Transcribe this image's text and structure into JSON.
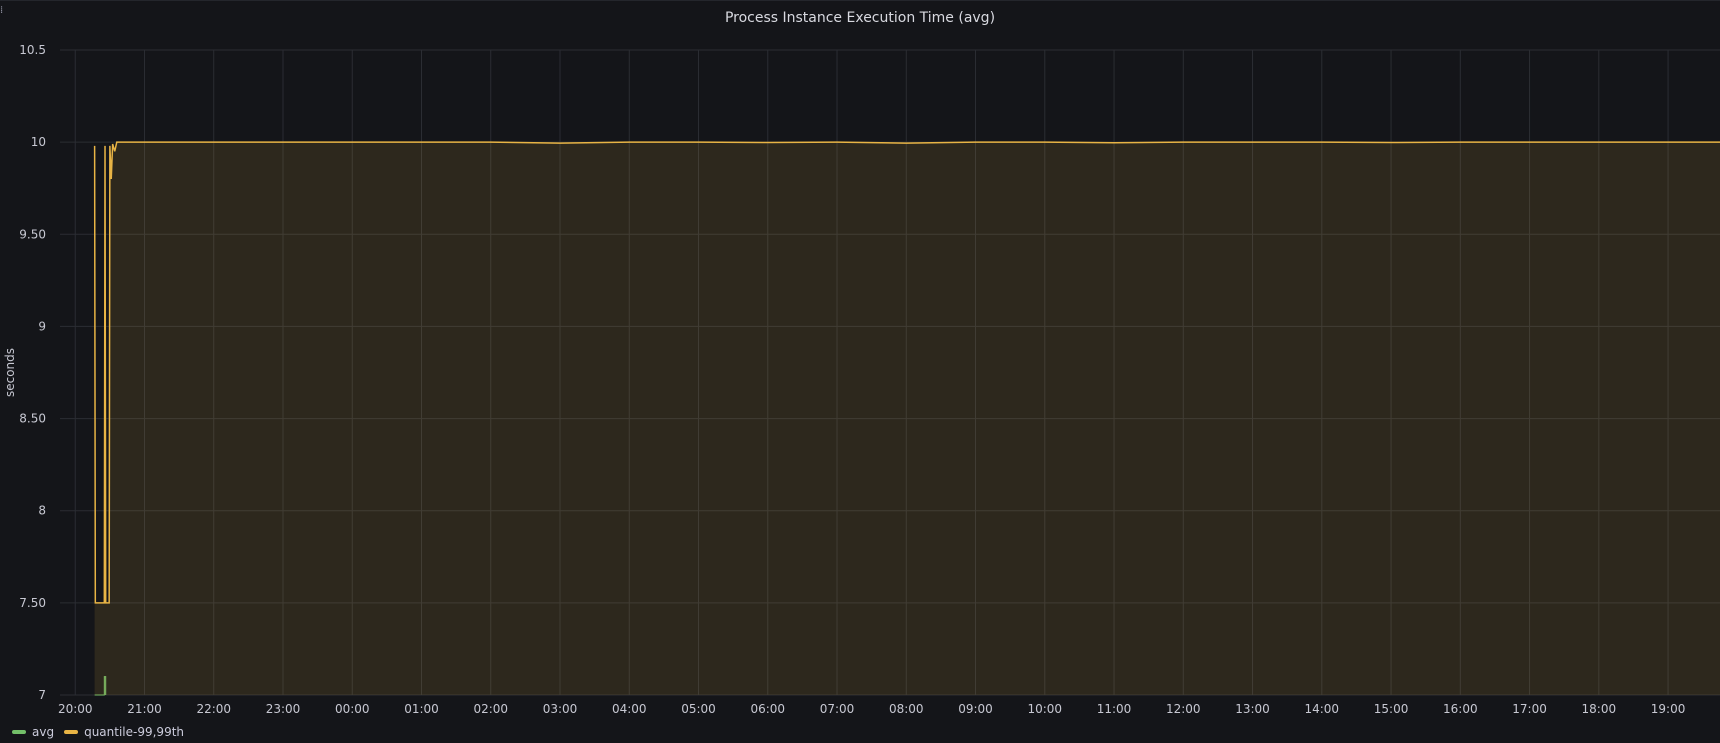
{
  "panel": {
    "title": "Process Instance Execution Time (avg)"
  },
  "chart_data": {
    "type": "area",
    "title": "Process Instance Execution Time (avg)",
    "ylabel": "seconds",
    "xlabel": "",
    "ylim": [
      7,
      10.5
    ],
    "y_ticks": [
      {
        "value": 10.5,
        "label": "10.5"
      },
      {
        "value": 10,
        "label": "10"
      },
      {
        "value": 9.5,
        "label": "9.50"
      },
      {
        "value": 9,
        "label": "9"
      },
      {
        "value": 8.5,
        "label": "8.50"
      },
      {
        "value": 8,
        "label": "8"
      },
      {
        "value": 7.5,
        "label": "7.50"
      },
      {
        "value": 7,
        "label": "7"
      }
    ],
    "x_ticks": [
      "20:00",
      "21:00",
      "22:00",
      "23:00",
      "00:00",
      "01:00",
      "02:00",
      "03:00",
      "04:00",
      "05:00",
      "06:00",
      "07:00",
      "08:00",
      "09:00",
      "10:00",
      "11:00",
      "12:00",
      "13:00",
      "14:00",
      "15:00",
      "16:00",
      "17:00",
      "18:00",
      "19:00"
    ],
    "x_range_hours": [
      -0.22,
      23.75
    ],
    "grid": true,
    "legend_position": "bottom-left",
    "series": [
      {
        "name": "avg",
        "color": "#73bf69",
        "points": [
          [
            0.28,
            7
          ],
          [
            0.42,
            7
          ],
          [
            0.42,
            7.1
          ],
          [
            0.44,
            7.1
          ],
          [
            0.44,
            7
          ]
        ]
      },
      {
        "name": "quantile-99,99th",
        "color": "#e8b445",
        "points": [
          [
            0.28,
            9.98
          ],
          [
            0.29,
            7.5
          ],
          [
            0.42,
            7.5
          ],
          [
            0.43,
            9.98
          ],
          [
            0.44,
            7.5
          ],
          [
            0.49,
            7.5
          ],
          [
            0.5,
            9.98
          ],
          [
            0.52,
            9.8
          ],
          [
            0.54,
            9.99
          ],
          [
            0.57,
            9.95
          ],
          [
            0.6,
            10
          ],
          [
            1,
            10
          ],
          [
            2,
            10
          ],
          [
            3,
            10
          ],
          [
            4,
            10
          ],
          [
            5,
            10
          ],
          [
            6,
            10
          ],
          [
            7,
            9.995
          ],
          [
            8,
            10
          ],
          [
            9,
            10
          ],
          [
            10,
            9.998
          ],
          [
            11,
            10
          ],
          [
            12,
            9.995
          ],
          [
            13,
            10
          ],
          [
            14,
            10
          ],
          [
            15,
            9.997
          ],
          [
            16,
            10
          ],
          [
            17,
            10
          ],
          [
            18,
            10
          ],
          [
            19,
            9.998
          ],
          [
            20,
            10
          ],
          [
            21,
            10
          ],
          [
            22,
            10
          ],
          [
            23,
            10
          ],
          [
            23.75,
            10
          ]
        ]
      }
    ]
  }
}
